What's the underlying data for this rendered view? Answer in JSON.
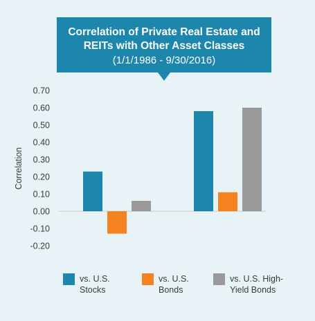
{
  "chart_data": {
    "type": "bar",
    "title": "Correlation of Private Real Estate and REITs with Other Asset Classes",
    "subtitle": "(1/1/1986 - 9/30/2016)",
    "xlabel": "",
    "ylabel": "Correlation",
    "ylim": [
      -0.2,
      0.7
    ],
    "yticks": [
      "0.70",
      "0.60",
      "0.50",
      "0.40",
      "0.30",
      "0.20",
      "0.10",
      "0.00",
      "-0.10",
      "-0.20"
    ],
    "grid": false,
    "legend_position": "bottom",
    "categories": [
      "",
      ""
    ],
    "series": [
      {
        "name": "vs. U.S. Stocks",
        "legend_label": "vs. U.S.\nStocks",
        "color": "#1d86ad",
        "values": [
          0.23,
          0.58
        ]
      },
      {
        "name": "vs. U.S. Bonds",
        "legend_label": "vs. U.S.\nBonds",
        "color": "#f58220",
        "values": [
          -0.13,
          0.11
        ]
      },
      {
        "name": "vs. U.S. High-Yield Bonds",
        "legend_label": "vs. U.S. High-\nYield Bonds",
        "color": "#999999",
        "values": [
          0.06,
          0.6
        ]
      }
    ]
  }
}
